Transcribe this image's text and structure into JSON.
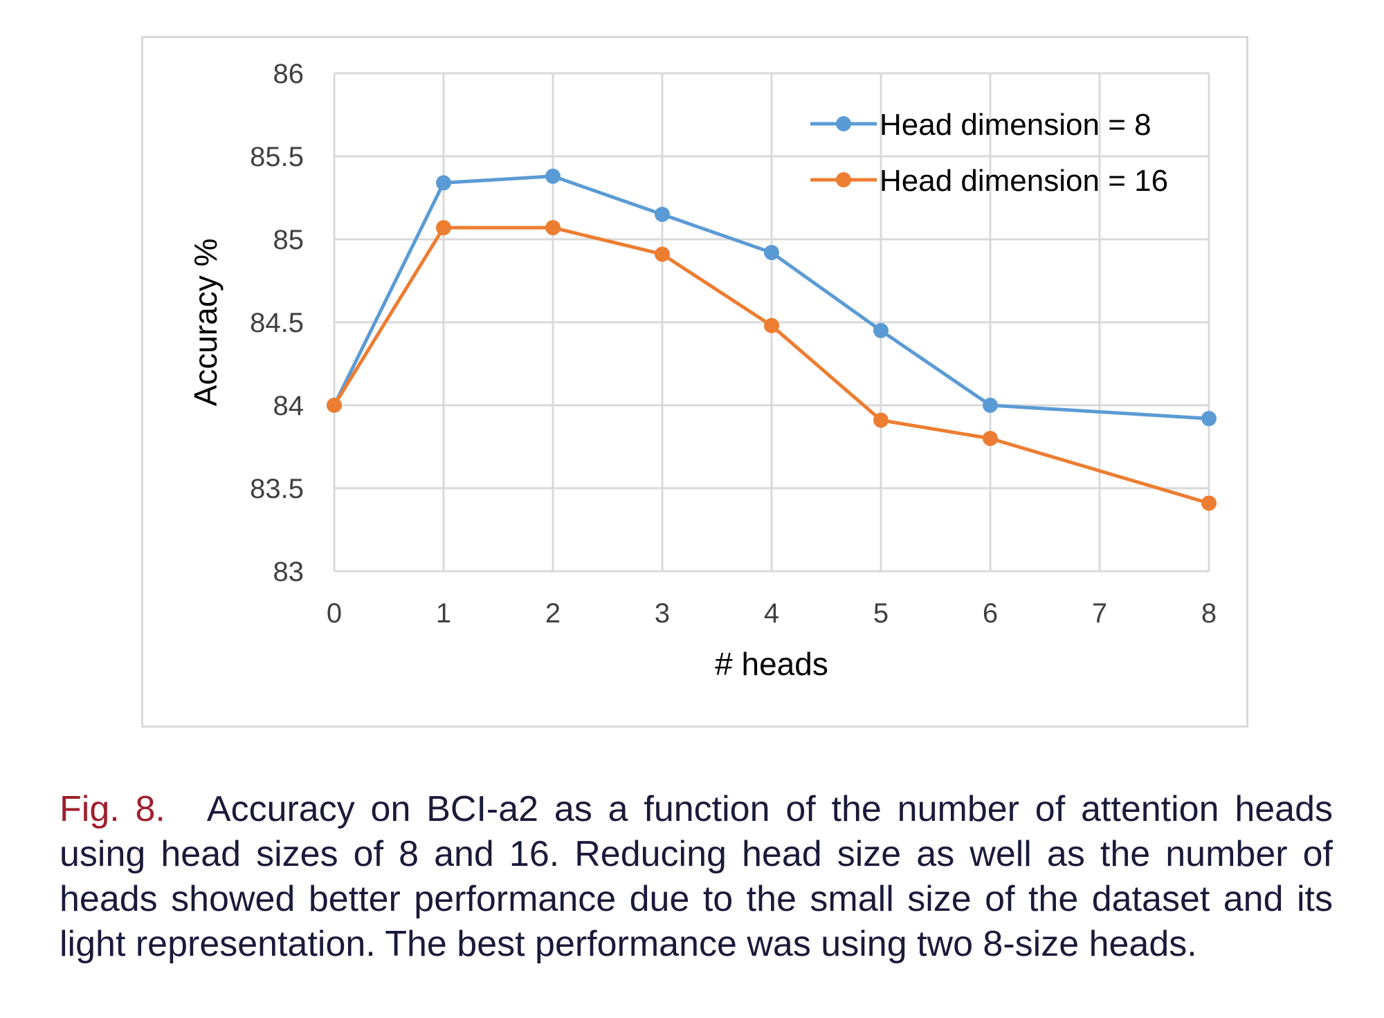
{
  "chart_data": {
    "type": "line",
    "xlabel": "# heads",
    "ylabel": "Accuracy %",
    "x": [
      0,
      1,
      2,
      3,
      4,
      5,
      6,
      8
    ],
    "x_ticks": [
      "0",
      "1",
      "2",
      "3",
      "4",
      "5",
      "6",
      "7",
      "8"
    ],
    "xlim": [
      0,
      8
    ],
    "y_ticks": [
      "83",
      "83.5",
      "84",
      "84.5",
      "85",
      "85.5",
      "86"
    ],
    "ylim": [
      83,
      86
    ],
    "grid": true,
    "legend_position": "top-right",
    "series": [
      {
        "name": "Head dimension = 8",
        "color": "#5b9bd5",
        "values": [
          84.0,
          85.34,
          85.38,
          85.15,
          84.92,
          84.45,
          84.0,
          83.92
        ]
      },
      {
        "name": "Head dimension = 16",
        "color": "#ed7d31",
        "values": [
          84.0,
          85.07,
          85.07,
          84.91,
          84.48,
          83.91,
          83.8,
          83.41
        ]
      }
    ]
  },
  "caption": {
    "label": "Fig. 8.",
    "text": "Accuracy on BCI-a2 as a function of the number of attention heads using head sizes of 8 and 16. Reducing head size as well as the number of heads showed better performance due to the small size of the dataset and its light representation. The best performance was using two 8-size heads."
  }
}
